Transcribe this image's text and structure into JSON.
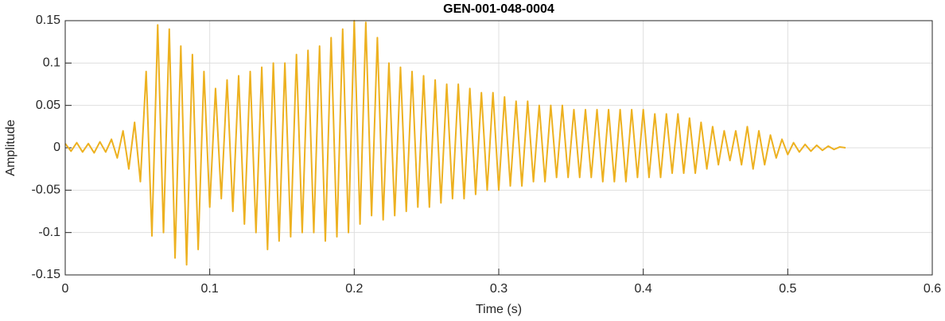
{
  "chart_data": {
    "type": "line",
    "title": "GEN-001-048-0004",
    "x_label": "Time (s)",
    "y_label": "Amplitude",
    "x": [
      0,
      0.004,
      0.008,
      0.012,
      0.016,
      0.02,
      0.024,
      0.028,
      0.032,
      0.036,
      0.04,
      0.044,
      0.048,
      0.052,
      0.056,
      0.06,
      0.064,
      0.068,
      0.072,
      0.076,
      0.08,
      0.084,
      0.088,
      0.092,
      0.096,
      0.1,
      0.104,
      0.108,
      0.112,
      0.116,
      0.12,
      0.124,
      0.128,
      0.132,
      0.136,
      0.14,
      0.144,
      0.148,
      0.152,
      0.156,
      0.16,
      0.164,
      0.168,
      0.172,
      0.176,
      0.18,
      0.184,
      0.188,
      0.192,
      0.196,
      0.2,
      0.204,
      0.208,
      0.212,
      0.216,
      0.22,
      0.224,
      0.228,
      0.232,
      0.236,
      0.24,
      0.244,
      0.248,
      0.252,
      0.256,
      0.26,
      0.264,
      0.268,
      0.272,
      0.276,
      0.28,
      0.284,
      0.288,
      0.292,
      0.296,
      0.3,
      0.304,
      0.308,
      0.312,
      0.316,
      0.32,
      0.324,
      0.328,
      0.332,
      0.336,
      0.34,
      0.344,
      0.348,
      0.352,
      0.356,
      0.36,
      0.364,
      0.368,
      0.372,
      0.376,
      0.38,
      0.384,
      0.388,
      0.392,
      0.396,
      0.4,
      0.404,
      0.408,
      0.412,
      0.416,
      0.42,
      0.424,
      0.428,
      0.432,
      0.436,
      0.44,
      0.444,
      0.448,
      0.452,
      0.456,
      0.46,
      0.464,
      0.468,
      0.472,
      0.476,
      0.48,
      0.484,
      0.488,
      0.492,
      0.496,
      0.5,
      0.504,
      0.508,
      0.512,
      0.516,
      0.52,
      0.524,
      0.528,
      0.532,
      0.536,
      0.54
    ],
    "series": [
      {
        "color": "#EDB120",
        "values": [
          0.005,
          -0.004,
          0.006,
          -0.005,
          0.005,
          -0.006,
          0.007,
          -0.005,
          0.01,
          -0.012,
          0.02,
          -0.025,
          0.03,
          -0.04,
          0.09,
          -0.104,
          0.145,
          -0.1,
          0.14,
          -0.13,
          0.12,
          -0.138,
          0.11,
          -0.12,
          0.09,
          -0.07,
          0.07,
          -0.06,
          0.08,
          -0.075,
          0.085,
          -0.09,
          0.09,
          -0.1,
          0.095,
          -0.12,
          0.1,
          -0.11,
          0.1,
          -0.105,
          0.11,
          -0.1,
          0.115,
          -0.1,
          0.12,
          -0.11,
          0.13,
          -0.105,
          0.14,
          -0.1,
          0.15,
          -0.09,
          0.148,
          -0.08,
          0.13,
          -0.085,
          0.1,
          -0.08,
          0.095,
          -0.075,
          0.09,
          -0.07,
          0.085,
          -0.07,
          0.08,
          -0.065,
          0.075,
          -0.06,
          0.075,
          -0.06,
          0.07,
          -0.055,
          0.065,
          -0.05,
          0.065,
          -0.05,
          0.06,
          -0.045,
          0.055,
          -0.045,
          0.055,
          -0.04,
          0.05,
          -0.04,
          0.05,
          -0.035,
          0.05,
          -0.035,
          0.045,
          -0.035,
          0.045,
          -0.035,
          0.045,
          -0.04,
          0.045,
          -0.04,
          0.045,
          -0.04,
          0.045,
          -0.035,
          0.045,
          -0.035,
          0.04,
          -0.035,
          0.04,
          -0.03,
          0.04,
          -0.03,
          0.035,
          -0.03,
          0.03,
          -0.025,
          0.025,
          -0.02,
          0.02,
          -0.015,
          0.02,
          -0.02,
          0.025,
          -0.025,
          0.02,
          -0.02,
          0.015,
          -0.012,
          0.01,
          -0.008,
          0.006,
          -0.005,
          0.004,
          -0.004,
          0.003,
          -0.003,
          0.002,
          -0.002,
          0.001,
          0
        ]
      }
    ],
    "xlim": [
      0,
      0.6
    ],
    "xticks": [
      0,
      0.1,
      0.2,
      0.3,
      0.4,
      0.5,
      0.6
    ],
    "ylim": [
      -0.15,
      0.15
    ],
    "yticks": [
      -0.15,
      -0.1,
      -0.05,
      0,
      0.05,
      0.1,
      0.15
    ],
    "grid": true
  }
}
